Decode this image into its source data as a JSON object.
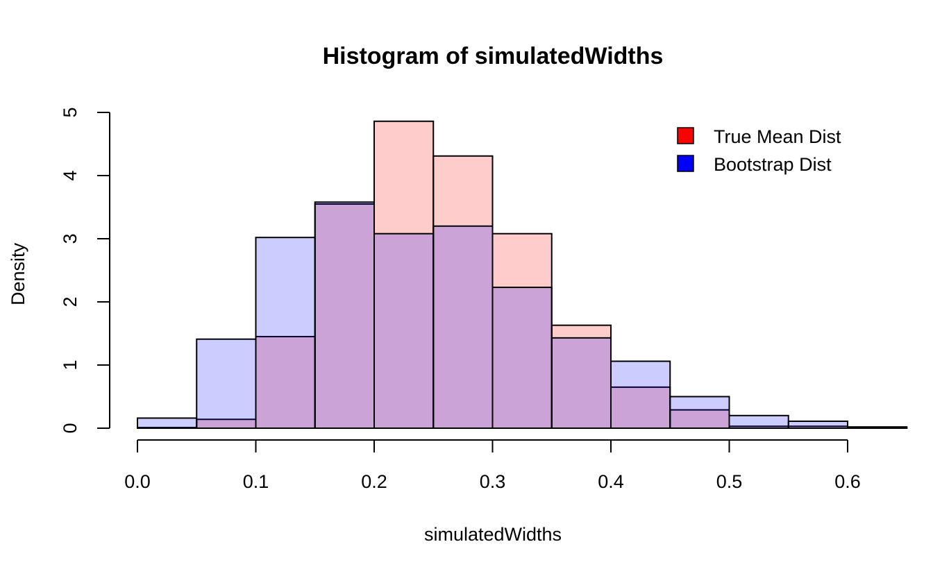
{
  "chart_data": {
    "type": "bar",
    "subtype": "overlaid-histogram",
    "title": "Histogram of simulatedWidths",
    "xlabel": "simulatedWidths",
    "ylabel": "Density",
    "xlim": [
      0.0,
      0.625
    ],
    "ylim": [
      0,
      5
    ],
    "x_ticks": [
      "0.0",
      "0.1",
      "0.2",
      "0.3",
      "0.4",
      "0.5",
      "0.6"
    ],
    "y_ticks": [
      "0",
      "1",
      "2",
      "3",
      "4",
      "5"
    ],
    "grid": false,
    "legend_position": "top-right",
    "bin_edges": [
      0.0,
      0.05,
      0.1,
      0.15,
      0.2,
      0.25,
      0.3,
      0.35,
      0.4,
      0.45,
      0.5,
      0.55,
      0.6,
      0.65
    ],
    "series": [
      {
        "name": "True Mean Dist",
        "legend_color": "#ff0000",
        "fill_color": "rgba(255,0,0,0.2)",
        "values": [
          0.01,
          0.14,
          1.45,
          3.55,
          4.86,
          4.31,
          3.08,
          1.63,
          0.65,
          0.29,
          0.03,
          0.03,
          0.01
        ]
      },
      {
        "name": "Bootstrap Dist",
        "legend_color": "#0000ff",
        "fill_color": "rgba(0,0,255,0.2)",
        "values": [
          0.16,
          1.41,
          3.02,
          3.58,
          3.08,
          3.2,
          2.23,
          1.43,
          1.06,
          0.5,
          0.2,
          0.11,
          0.02
        ]
      }
    ]
  }
}
